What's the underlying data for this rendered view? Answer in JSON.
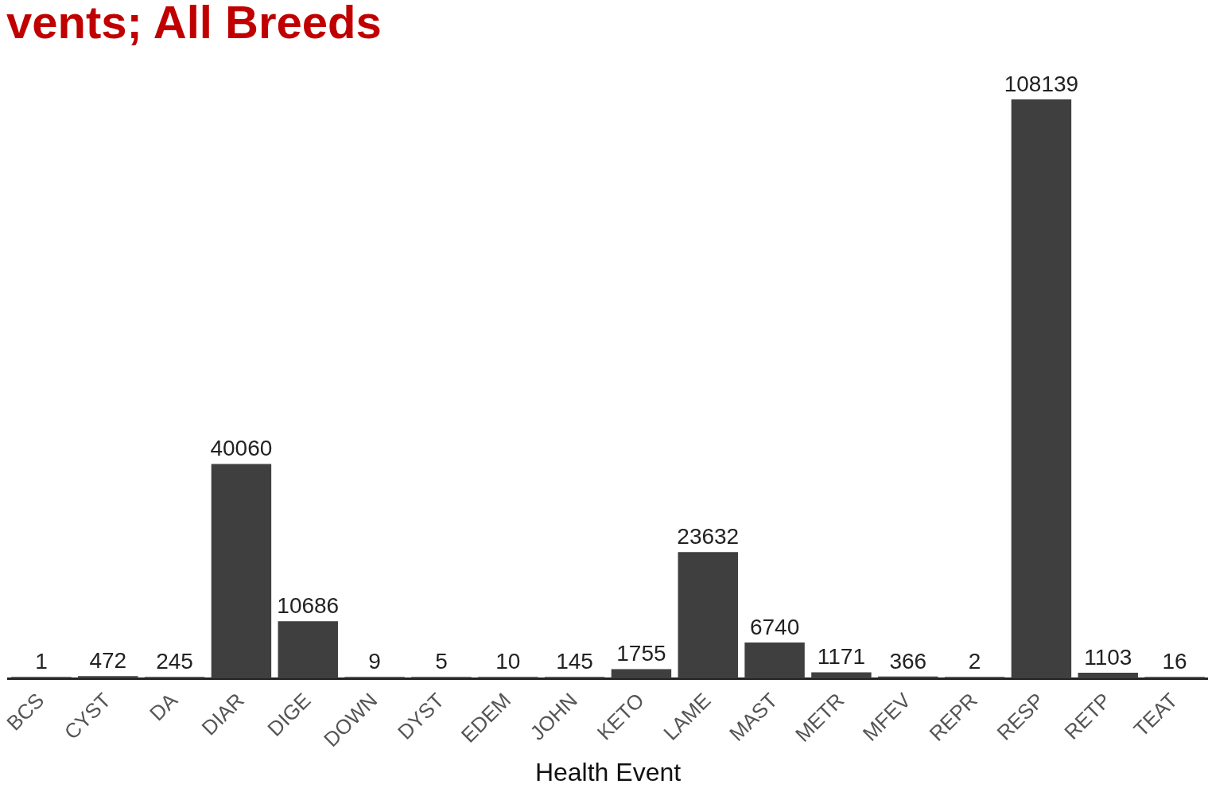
{
  "chart_data": {
    "type": "bar",
    "title": "vents; All Breeds",
    "xlabel": "Health Event",
    "categories": [
      "BCS",
      "CYST",
      "DA",
      "DIAR",
      "DIGE",
      "DOWN",
      "DYST",
      "EDEM",
      "JOHN",
      "KETO",
      "LAME",
      "MAST",
      "METR",
      "MFEV",
      "REPR",
      "RESP",
      "RETP",
      "TEAT"
    ],
    "values": [
      1,
      472,
      245,
      40060,
      10686,
      9,
      5,
      10,
      145,
      1755,
      23632,
      6740,
      1171,
      366,
      2,
      108139,
      1103,
      16
    ],
    "color": "#3f3f3f",
    "data_labels": true,
    "grid": false,
    "legend": false,
    "tick_labels": "x"
  }
}
